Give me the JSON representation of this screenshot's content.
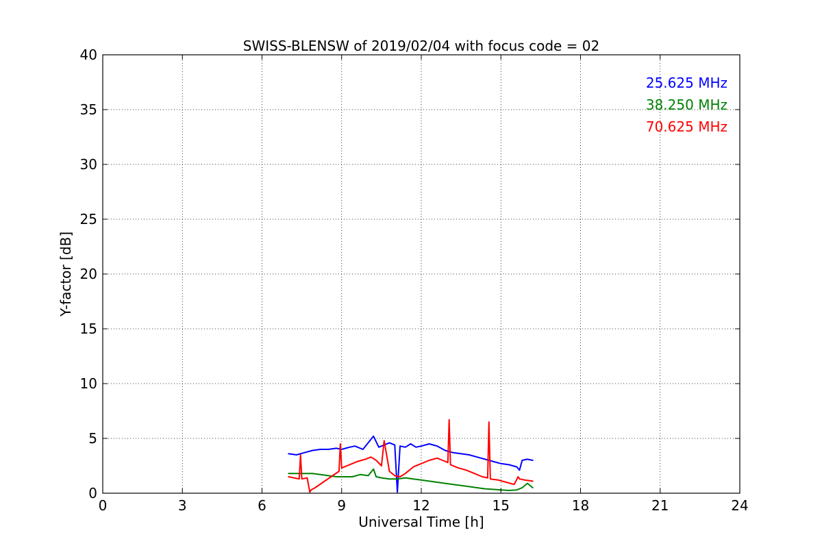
{
  "chart_data": {
    "type": "line",
    "title": "SWISS-BLENSW of 2019/02/04 with focus code = 02",
    "xlabel": "Universal Time [h]",
    "ylabel": "Y-factor [dB]",
    "xlim": [
      0,
      24
    ],
    "ylim": [
      0,
      40
    ],
    "xticks": [
      0,
      3,
      6,
      9,
      12,
      15,
      18,
      21,
      24
    ],
    "yticks": [
      0,
      5,
      10,
      15,
      20,
      25,
      30,
      35,
      40
    ],
    "grid": true,
    "legend_position": "top-right",
    "series": [
      {
        "name": "25.625 MHz",
        "color": "#0000ff",
        "x": [
          7.0,
          7.3,
          7.6,
          7.9,
          8.2,
          8.5,
          8.8,
          9.0,
          9.3,
          9.5,
          9.8,
          10.0,
          10.2,
          10.4,
          10.6,
          10.8,
          11.0,
          11.1,
          11.2,
          11.4,
          11.6,
          11.8,
          12.0,
          12.3,
          12.6,
          12.9,
          13.2,
          13.5,
          13.8,
          14.1,
          14.4,
          14.7,
          15.0,
          15.3,
          15.6,
          15.7,
          15.8,
          16.0,
          16.2
        ],
        "y": [
          3.6,
          3.5,
          3.7,
          3.9,
          4.0,
          4.0,
          4.1,
          4.0,
          4.2,
          4.3,
          4.0,
          4.6,
          5.2,
          4.2,
          4.4,
          4.6,
          4.4,
          0.1,
          4.3,
          4.2,
          4.5,
          4.2,
          4.3,
          4.5,
          4.3,
          3.9,
          3.7,
          3.6,
          3.5,
          3.3,
          3.1,
          2.9,
          2.7,
          2.6,
          2.4,
          2.1,
          3.0,
          3.1,
          3.0
        ]
      },
      {
        "name": "38.250 MHz",
        "color": "#008000",
        "x": [
          7.0,
          7.3,
          7.6,
          7.9,
          8.2,
          8.5,
          8.8,
          9.1,
          9.4,
          9.7,
          10.0,
          10.2,
          10.3,
          10.5,
          10.8,
          11.1,
          11.4,
          11.7,
          12.0,
          12.3,
          12.6,
          12.9,
          13.2,
          13.5,
          13.8,
          14.1,
          14.4,
          14.7,
          15.0,
          15.3,
          15.6,
          15.8,
          16.0,
          16.2
        ],
        "y": [
          1.8,
          1.8,
          1.8,
          1.8,
          1.7,
          1.6,
          1.5,
          1.5,
          1.5,
          1.7,
          1.6,
          2.2,
          1.5,
          1.4,
          1.3,
          1.3,
          1.4,
          1.3,
          1.2,
          1.1,
          1.0,
          0.9,
          0.8,
          0.7,
          0.6,
          0.5,
          0.4,
          0.35,
          0.3,
          0.25,
          0.3,
          0.5,
          0.9,
          0.5
        ]
      },
      {
        "name": "70.625 MHz",
        "color": "#ff0000",
        "x": [
          7.0,
          7.2,
          7.4,
          7.45,
          7.5,
          7.7,
          7.8,
          7.85,
          8.0,
          8.3,
          8.6,
          8.9,
          8.95,
          9.0,
          9.3,
          9.6,
          9.9,
          10.1,
          10.3,
          10.5,
          10.6,
          10.8,
          11.0,
          11.2,
          11.4,
          11.7,
          12.0,
          12.3,
          12.6,
          12.8,
          13.0,
          13.05,
          13.1,
          13.4,
          13.7,
          14.0,
          14.3,
          14.5,
          14.55,
          14.6,
          14.9,
          15.2,
          15.5,
          15.65,
          15.7,
          15.9,
          16.2
        ],
        "y": [
          1.5,
          1.4,
          1.3,
          3.5,
          1.3,
          1.4,
          0.1,
          0.3,
          0.5,
          1.0,
          1.5,
          2.0,
          4.5,
          2.3,
          2.6,
          2.9,
          3.1,
          3.3,
          3.0,
          2.5,
          4.8,
          2.0,
          1.6,
          1.5,
          1.8,
          2.4,
          2.7,
          3.0,
          3.2,
          3.0,
          2.8,
          6.7,
          2.6,
          2.3,
          2.1,
          1.8,
          1.5,
          1.4,
          6.5,
          1.3,
          1.2,
          1.0,
          0.8,
          1.5,
          1.3,
          1.2,
          1.1
        ]
      }
    ]
  }
}
